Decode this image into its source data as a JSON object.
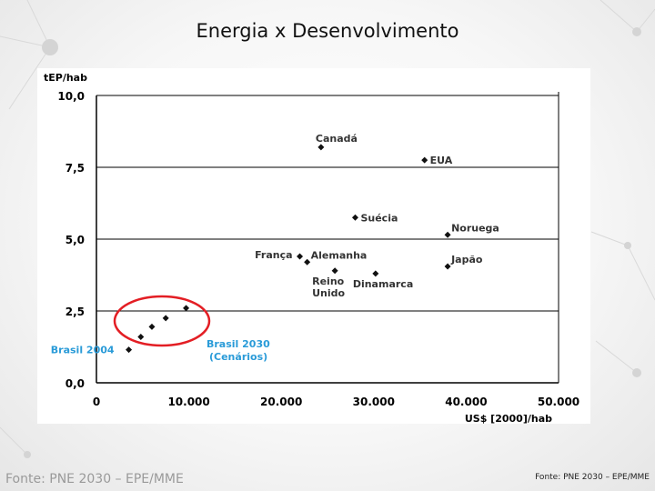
{
  "slide": {
    "title": "Energia x Desenvolvimento",
    "source_left": "Fonte: PNE 2030 – EPE/MME",
    "source_right": "Fonte: PNE 2030 – EPE/MME"
  },
  "colors": {
    "point": "#111111",
    "axis": "#000000",
    "highlight": "#e31e24",
    "brasil_label": "#2a9bd8"
  },
  "chart_data": {
    "type": "scatter",
    "title": "",
    "xlabel": "US$ [2000]/hab",
    "ylabel": "tEP/hab",
    "xlim": [
      0,
      50000
    ],
    "ylim": [
      0,
      10
    ],
    "x_ticks": [
      {
        "value": 0,
        "label": "0"
      },
      {
        "value": 10000,
        "label": "10.000"
      },
      {
        "value": 20000,
        "label": "20.000"
      },
      {
        "value": 30000,
        "label": "30.000"
      },
      {
        "value": 40000,
        "label": "40.000"
      },
      {
        "value": 50000,
        "label": "50.000"
      }
    ],
    "y_ticks": [
      {
        "value": 0,
        "label": "0,0"
      },
      {
        "value": 2.5,
        "label": "2,5"
      },
      {
        "value": 5,
        "label": "5,0"
      },
      {
        "value": 7.5,
        "label": "7,5"
      },
      {
        "value": 10,
        "label": "10,0"
      }
    ],
    "gridlines_y": [
      2.5,
      5,
      7.5,
      10
    ],
    "countries": [
      {
        "name": "Canadá",
        "x": 24300,
        "y": 8.2,
        "label_lines": [
          "Canadá"
        ],
        "label_pos": "above"
      },
      {
        "name": "EUA",
        "x": 35500,
        "y": 7.75,
        "label_lines": [
          "EUA"
        ],
        "label_pos": "right"
      },
      {
        "name": "Suécia",
        "x": 28000,
        "y": 5.75,
        "label_lines": [
          "Suécia"
        ],
        "label_pos": "right"
      },
      {
        "name": "Noruega",
        "x": 38000,
        "y": 5.15,
        "label_lines": [
          "Noruega"
        ],
        "label_pos": "right-above"
      },
      {
        "name": "França",
        "x": 22000,
        "y": 4.4,
        "label_lines": [
          "França"
        ],
        "label_pos": "left"
      },
      {
        "name": "Alemanha",
        "x": 22800,
        "y": 4.2,
        "label_lines": [
          "Alemanha"
        ],
        "label_pos": "right-above"
      },
      {
        "name": "Reino Unido",
        "x": 25800,
        "y": 3.9,
        "label_lines": [
          "Reino",
          "Unido"
        ],
        "label_pos": "below"
      },
      {
        "name": "Dinamarca",
        "x": 30200,
        "y": 3.8,
        "label_lines": [
          "Dinamarca"
        ],
        "label_pos": "below"
      },
      {
        "name": "Japão",
        "x": 38000,
        "y": 4.05,
        "label_lines": [
          "Japão"
        ],
        "label_pos": "right-above"
      }
    ],
    "brasil_2004": {
      "label": "Brasil 2004",
      "x": 3500,
      "y": 1.15
    },
    "brasil_2030": {
      "label_lines": [
        "Brasil 2030",
        "(Cenários)"
      ],
      "points": [
        {
          "x": 4800,
          "y": 1.6
        },
        {
          "x": 6000,
          "y": 1.95
        },
        {
          "x": 7500,
          "y": 2.25
        },
        {
          "x": 9700,
          "y": 2.6
        }
      ]
    }
  }
}
